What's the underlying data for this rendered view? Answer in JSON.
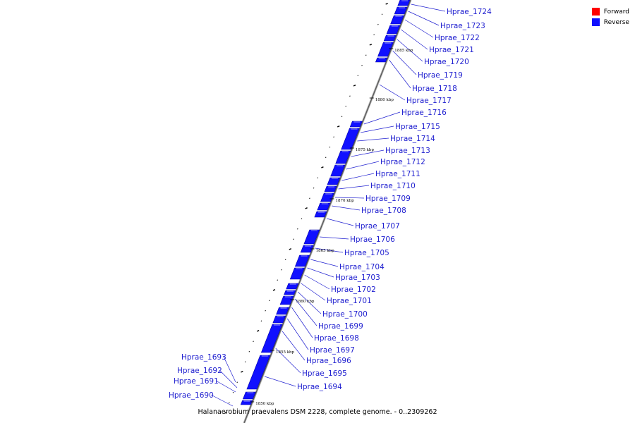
{
  "legend": [
    {
      "label": "Forward",
      "color": "#ff0000"
    },
    {
      "label": "Reverse",
      "color": "#1010ff"
    }
  ],
  "caption": "Halanaerobium praevalens DSM 2228, complete genome. - 0..2309262",
  "strand_color": "#1010ff",
  "kbp_ticks": [
    "1850 kbp",
    "1855 kbp",
    "1860 kbp",
    "1865 kbp",
    "1870 kbp",
    "1875 kbp",
    "1880 kbp",
    "1885 kbp"
  ],
  "right_genes": [
    "Hprae_1724",
    "Hprae_1723",
    "Hprae_1722",
    "Hprae_1721",
    "Hprae_1720",
    "Hprae_1719",
    "Hprae_1718",
    "Hprae_1717",
    "Hprae_1716",
    "Hprae_1715",
    "Hprae_1714",
    "Hprae_1713",
    "Hprae_1712",
    "Hprae_1711",
    "Hprae_1710",
    "Hprae_1709",
    "Hprae_1708",
    "Hprae_1707",
    "Hprae_1706",
    "Hprae_1705",
    "Hprae_1704",
    "Hprae_1703",
    "Hprae_1702",
    "Hprae_1701",
    "Hprae_1700",
    "Hprae_1699",
    "Hprae_1698",
    "Hprae_1697",
    "Hprae_1696",
    "Hprae_1695",
    "Hprae_1694"
  ],
  "left_genes": [
    "Hprae_1693",
    "Hprae_1692",
    "Hprae_1691",
    "Hprae_1690"
  ]
}
